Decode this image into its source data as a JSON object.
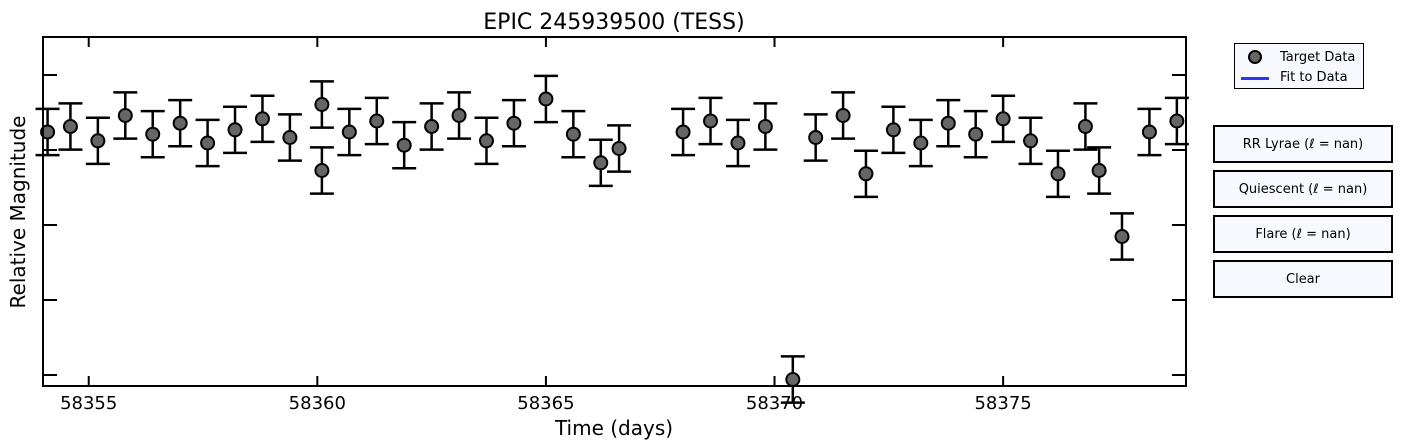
{
  "chart_data": {
    "type": "scatter",
    "title": "EPIC 245939500 (TESS)",
    "xlabel": "Time (days)",
    "ylabel": "Relative Magnitude",
    "xlim": [
      58354.0,
      58379.0
    ],
    "xticks": [
      58355,
      58360,
      58365,
      58370,
      58375
    ],
    "ytick_count": 5,
    "grid": false,
    "legend_placement": "top-right",
    "series": [
      {
        "name": "Target Data",
        "marker": "circle",
        "color": "#666666",
        "points": [
          [
            58354.1,
            0.2
          ],
          [
            58354.6,
            0.15
          ],
          [
            58355.2,
            0.28
          ],
          [
            58355.8,
            0.05
          ],
          [
            58356.4,
            0.22
          ],
          [
            58357.0,
            0.12
          ],
          [
            58357.6,
            0.3
          ],
          [
            58358.2,
            0.18
          ],
          [
            58358.8,
            0.08
          ],
          [
            58359.4,
            0.25
          ],
          [
            58360.1,
            -0.05
          ],
          [
            58360.1,
            0.55
          ],
          [
            58360.7,
            0.2
          ],
          [
            58361.3,
            0.1
          ],
          [
            58361.9,
            0.32
          ],
          [
            58362.5,
            0.15
          ],
          [
            58363.1,
            0.05
          ],
          [
            58363.7,
            0.28
          ],
          [
            58364.3,
            0.12
          ],
          [
            58365.0,
            -0.1
          ],
          [
            58365.6,
            0.22
          ],
          [
            58366.2,
            0.48
          ],
          [
            58366.6,
            0.35
          ],
          [
            58368.0,
            0.2
          ],
          [
            58368.6,
            0.1
          ],
          [
            58369.2,
            0.3
          ],
          [
            58369.8,
            0.15
          ],
          [
            58370.4,
            2.45
          ],
          [
            58370.9,
            0.25
          ],
          [
            58371.5,
            0.05
          ],
          [
            58372.0,
            0.58
          ],
          [
            58372.6,
            0.18
          ],
          [
            58373.2,
            0.3
          ],
          [
            58373.8,
            0.12
          ],
          [
            58374.4,
            0.22
          ],
          [
            58375.0,
            0.08
          ],
          [
            58375.6,
            0.28
          ],
          [
            58376.2,
            0.58
          ],
          [
            58376.8,
            0.15
          ],
          [
            58377.1,
            0.55
          ],
          [
            58377.6,
            1.15
          ],
          [
            58378.2,
            0.2
          ],
          [
            58378.8,
            0.1
          ]
        ]
      },
      {
        "name": "Fit to Data",
        "color": "#3333ee",
        "points": []
      }
    ]
  },
  "buttons": [
    {
      "label": "RR Lyrae (ℓ = nan)"
    },
    {
      "label": "Quiescent (ℓ = nan)"
    },
    {
      "label": "Flare (ℓ = nan)"
    },
    {
      "label": "Clear"
    }
  ]
}
